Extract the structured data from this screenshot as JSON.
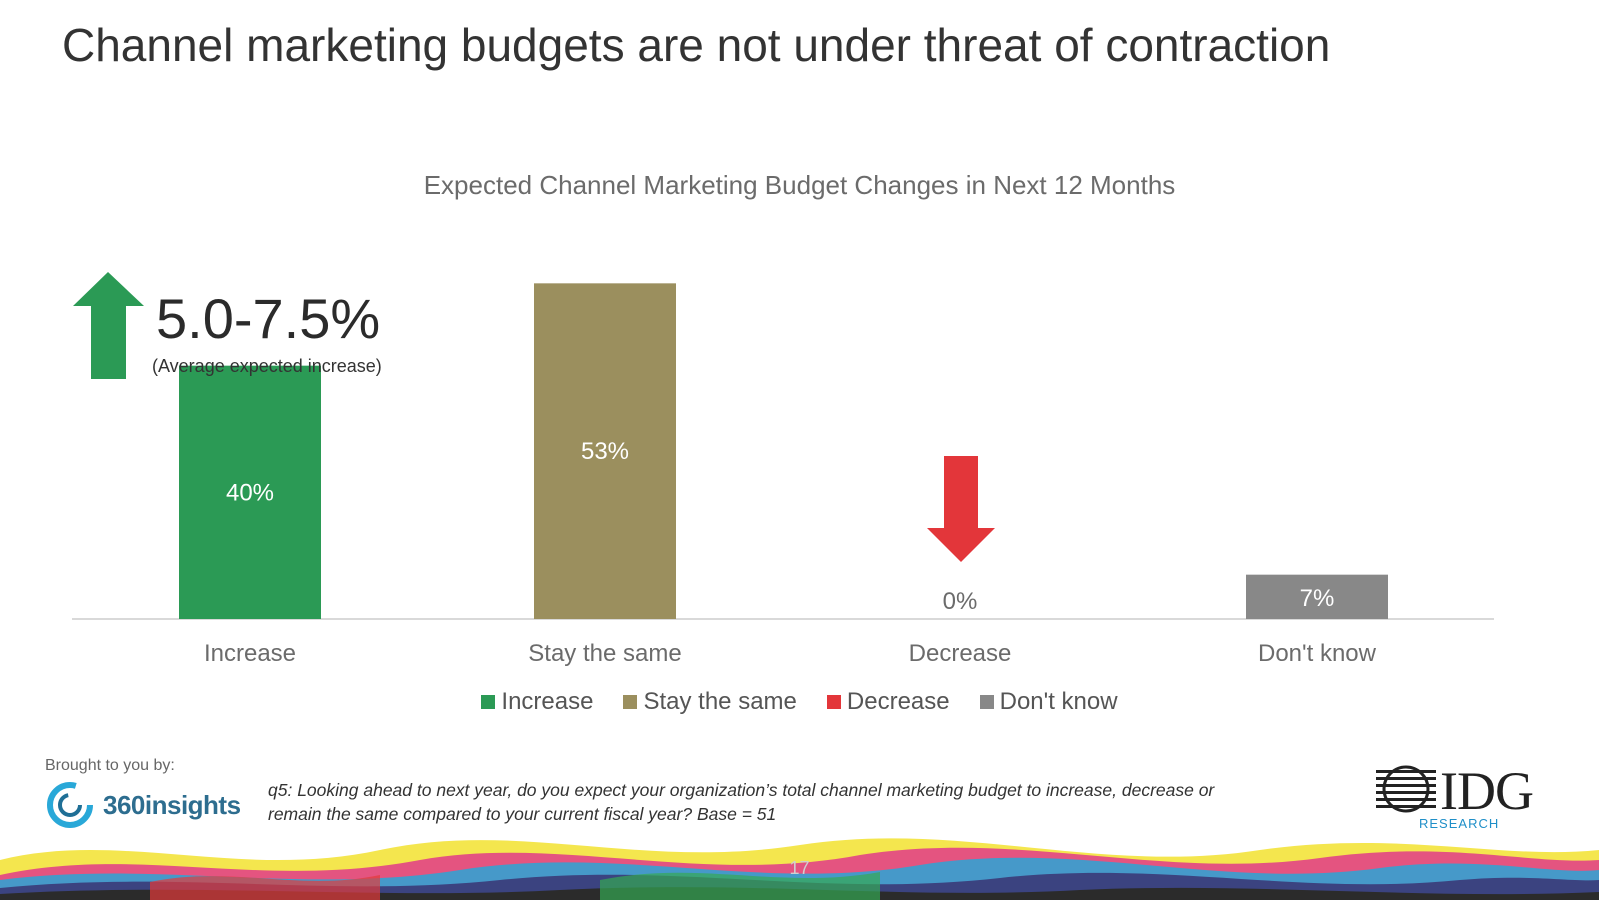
{
  "slide": {
    "title": "Channel marketing budgets are not under threat of contraction",
    "page_number": "17"
  },
  "callout": {
    "value": "5.0-7.5%",
    "note": "(Average expected increase)"
  },
  "colors": {
    "increase": "#2b9a55",
    "stay": "#9b8f5e",
    "decrease": "#e3363a",
    "dontknow": "#888888",
    "axis": "#d9d9d9"
  },
  "chart_data": {
    "type": "bar",
    "title": "Expected Channel Marketing Budget Changes in Next 12 Months",
    "categories": [
      "Increase",
      "Stay the same",
      "Decrease",
      "Don't know"
    ],
    "values": [
      40,
      53,
      0,
      7
    ],
    "data_labels": [
      "40%",
      "53%",
      "0%",
      "7%"
    ],
    "legend": [
      "Increase",
      "Stay the same",
      "Decrease",
      "Don't know"
    ],
    "legend_position": "bottom",
    "ylim": [
      0,
      60
    ],
    "grid": false
  },
  "footer": {
    "brought_by": "Brought to you by:",
    "sponsor_name": "360insights",
    "question": "q5: Looking ahead to next year, do you expect your organization’s total channel marketing budget to increase, decrease or remain the same compared to your current fiscal year? Base = 51",
    "research_brand": "IDG",
    "research_sub": "RESEARCH"
  }
}
